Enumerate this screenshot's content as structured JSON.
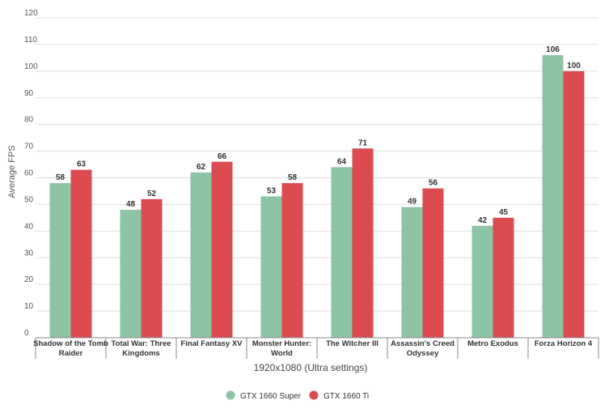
{
  "chart_data": {
    "type": "bar",
    "title": "",
    "xlabel": "1920x1080 (Ultra settings)",
    "ylabel": "Average FPS",
    "ylim": [
      0,
      120
    ],
    "yticks": [
      0,
      10,
      20,
      30,
      40,
      50,
      60,
      70,
      80,
      90,
      100,
      110,
      120
    ],
    "grid": true,
    "legend_position": "bottom-center",
    "categories": [
      [
        "Shadow of the Tomb",
        "Raider"
      ],
      [
        "Total War: Three",
        "Kingdoms"
      ],
      [
        "Final Fantasy XV"
      ],
      [
        "Monster Hunter:",
        "World"
      ],
      [
        "The Witcher III"
      ],
      [
        "Assassin's Creed",
        "Odyssey"
      ],
      [
        "Metro Exodus"
      ],
      [
        "Forza Horizon 4"
      ]
    ],
    "series": [
      {
        "name": "GTX 1660 Super",
        "color": "#8cc4a4",
        "values": [
          58,
          48,
          62,
          53,
          64,
          49,
          42,
          106
        ]
      },
      {
        "name": "GTX 1660 Ti",
        "color": "#dc4b50",
        "values": [
          63,
          52,
          66,
          58,
          71,
          56,
          45,
          100
        ]
      }
    ]
  }
}
